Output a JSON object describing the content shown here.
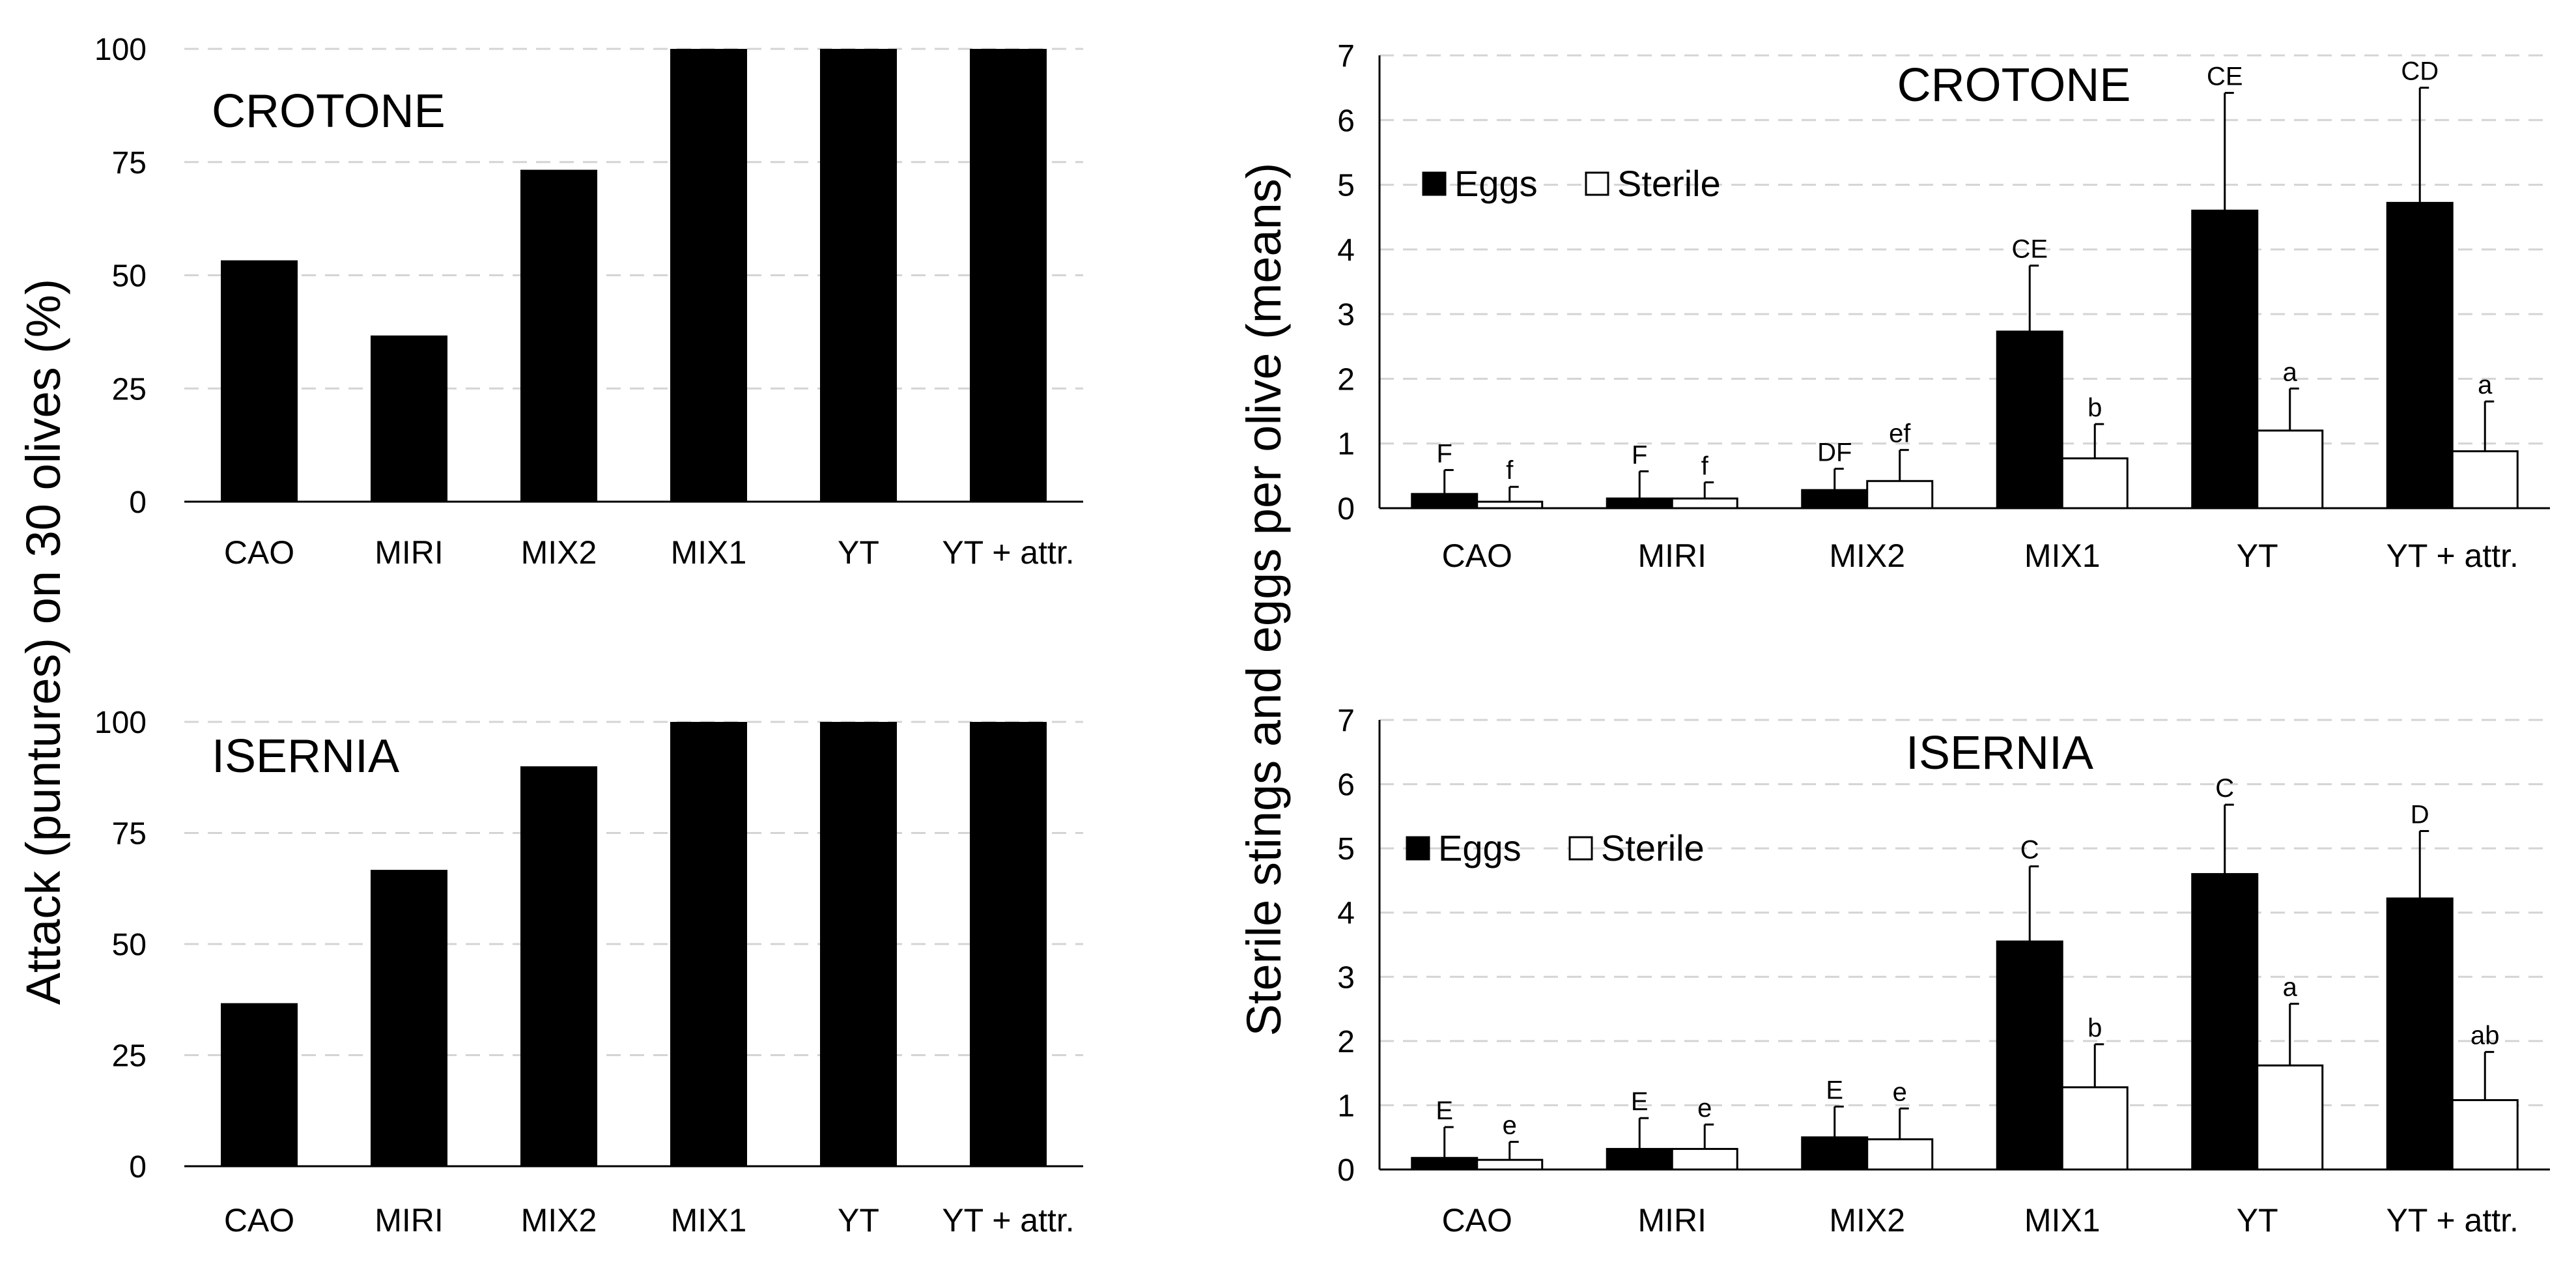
{
  "colors": {
    "black": "#000000",
    "white": "#ffffff",
    "grid": "#d4d4d4",
    "axis": "#7f7f7f"
  },
  "left_ylabel": "Attack (puntures) on 30 olives (%)",
  "right_ylabel": "Sterile stings and eggs  per olive (means)",
  "chart_data": [
    {
      "type": "bar",
      "title": "CROTONE",
      "categories": [
        "CAO",
        "MIRI",
        "MIX2",
        "MIX1",
        "YT",
        "YT + attr."
      ],
      "values": [
        53.3,
        36.7,
        73.3,
        100,
        100,
        100
      ],
      "ylabel": "Attack (puntures) on 30 olives (%)",
      "ylim": [
        0,
        100
      ],
      "yticks": [
        "0",
        "25",
        "50",
        "75",
        "100"
      ],
      "grid": true
    },
    {
      "type": "bar",
      "title": "ISERNIA",
      "categories": [
        "CAO",
        "MIRI",
        "MIX2",
        "MIX1",
        "YT",
        "YT + attr."
      ],
      "values": [
        36.7,
        66.7,
        90,
        100,
        100,
        100
      ],
      "ylabel": "Attack (puntures) on 30 olives (%)",
      "ylim": [
        0,
        100
      ],
      "yticks": [
        "0",
        "25",
        "50",
        "75",
        "100"
      ],
      "grid": true
    },
    {
      "type": "bar",
      "title": "CROTONE",
      "categories": [
        "CAO",
        "MIRI",
        "MIX2",
        "MIX1",
        "YT",
        "YT + attr."
      ],
      "ylabel": "Sterile stings and eggs  per olive (means)",
      "ylim": [
        0,
        7
      ],
      "yticks": [
        "0",
        "1",
        "2",
        "3",
        "4",
        "5",
        "6",
        "7"
      ],
      "legend": "top-left",
      "series": [
        {
          "name": "Eggs",
          "values": [
            0.22,
            0.15,
            0.28,
            2.73,
            4.6,
            4.72
          ],
          "errors": [
            0.37,
            0.42,
            0.33,
            1.02,
            1.82,
            1.78
          ],
          "letters": [
            "F",
            "F",
            "DF",
            "CE",
            "CE",
            "CD"
          ]
        },
        {
          "name": "Sterile",
          "values": [
            0.1,
            0.15,
            0.42,
            0.77,
            1.2,
            0.88
          ],
          "errors": [
            0.23,
            0.25,
            0.48,
            0.53,
            0.65,
            0.77
          ],
          "letters": [
            "f",
            "f",
            "ef",
            "b",
            "a",
            "a"
          ]
        }
      ]
    },
    {
      "type": "bar",
      "title": "ISERNIA",
      "categories": [
        "CAO",
        "MIRI",
        "MIX2",
        "MIX1",
        "YT",
        "YT + attr."
      ],
      "ylabel": "Sterile stings and eggs  per olive (means)",
      "ylim": [
        0,
        7
      ],
      "yticks": [
        "0",
        "1",
        "2",
        "3",
        "4",
        "5",
        "6",
        "7"
      ],
      "legend": "top-left",
      "series": [
        {
          "name": "Eggs",
          "values": [
            0.18,
            0.32,
            0.5,
            3.55,
            4.6,
            4.22
          ],
          "errors": [
            0.48,
            0.48,
            0.48,
            1.17,
            1.08,
            1.05
          ],
          "letters": [
            "E",
            "E",
            "E",
            "C",
            "C",
            "D"
          ]
        },
        {
          "name": "Sterile",
          "values": [
            0.15,
            0.32,
            0.47,
            1.28,
            1.62,
            1.08
          ],
          "errors": [
            0.28,
            0.38,
            0.48,
            0.67,
            0.96,
            0.75
          ],
          "letters": [
            "e",
            "e",
            "e",
            "b",
            "a",
            "ab"
          ]
        }
      ]
    }
  ]
}
